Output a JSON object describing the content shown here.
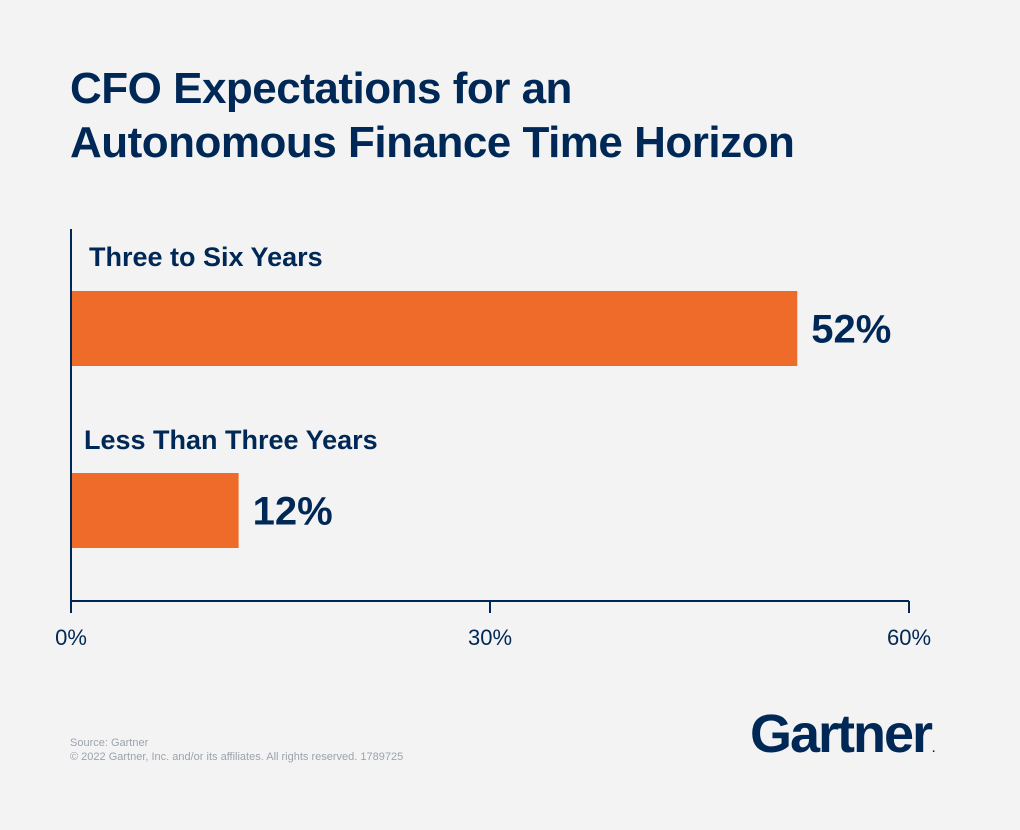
{
  "title_lines": [
    "CFO Expectations for an",
    "Autonomous Finance Time Horizon"
  ],
  "chart_data": {
    "type": "bar",
    "orientation": "horizontal",
    "categories": [
      "Three to Six Years",
      "Less Than Three Years"
    ],
    "values": [
      52,
      12
    ],
    "value_labels": [
      "52%",
      "12%"
    ],
    "xlim": [
      0,
      60
    ],
    "x_ticks": [
      0,
      30,
      60
    ],
    "x_tick_labels": [
      "0%",
      "30%",
      "60%"
    ],
    "grid": false,
    "bar_color": "#ee6b2a",
    "axis_color": "#002856"
  },
  "footer": {
    "source": "Source: Gartner",
    "copyright": "© 2022 Gartner, Inc. and/or its affiliates. All rights reserved. 1789725"
  },
  "logo": {
    "text": "Gartner",
    "mark": "."
  }
}
